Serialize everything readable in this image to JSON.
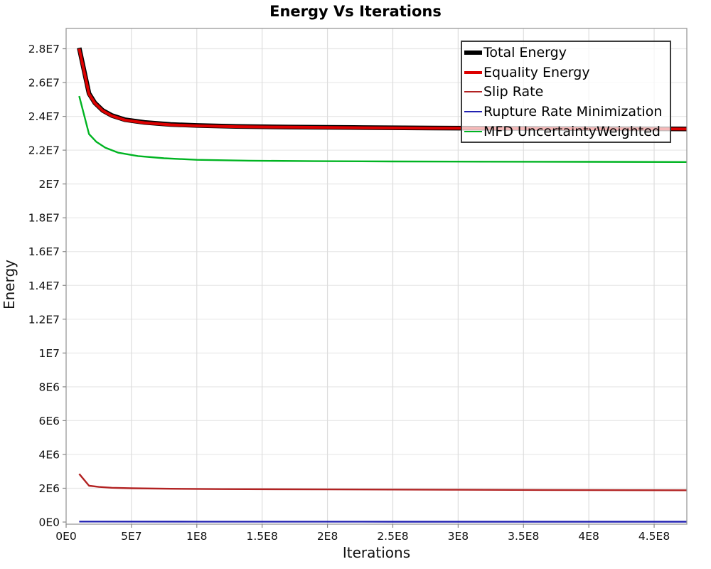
{
  "chart_data": {
    "type": "line",
    "title": "Energy Vs Iterations",
    "xlabel": "Iterations",
    "ylabel": "Energy",
    "xlim": [
      0,
      475000000
    ],
    "ylim": [
      0,
      29200000
    ],
    "grid": true,
    "legend_position": "top-right",
    "x_ticks": [
      {
        "value": 0,
        "label": "0E0"
      },
      {
        "value": 50000000,
        "label": "5E7"
      },
      {
        "value": 100000000,
        "label": "1E8"
      },
      {
        "value": 150000000,
        "label": "1.5E8"
      },
      {
        "value": 200000000,
        "label": "2E8"
      },
      {
        "value": 250000000,
        "label": "2.5E8"
      },
      {
        "value": 300000000,
        "label": "3E8"
      },
      {
        "value": 350000000,
        "label": "3.5E8"
      },
      {
        "value": 400000000,
        "label": "4E8"
      },
      {
        "value": 450000000,
        "label": "4.5E8"
      }
    ],
    "y_ticks": [
      {
        "value": 0,
        "label": "0E0"
      },
      {
        "value": 2000000,
        "label": "2E6"
      },
      {
        "value": 4000000,
        "label": "4E6"
      },
      {
        "value": 6000000,
        "label": "6E6"
      },
      {
        "value": 8000000,
        "label": "8E6"
      },
      {
        "value": 10000000,
        "label": "1E7"
      },
      {
        "value": 12000000,
        "label": "1.2E7"
      },
      {
        "value": 14000000,
        "label": "1.4E7"
      },
      {
        "value": 16000000,
        "label": "1.6E7"
      },
      {
        "value": 18000000,
        "label": "1.8E7"
      },
      {
        "value": 20000000,
        "label": "2E7"
      },
      {
        "value": 22000000,
        "label": "2.2E7"
      },
      {
        "value": 24000000,
        "label": "2.4E7"
      },
      {
        "value": 26000000,
        "label": "2.6E7"
      },
      {
        "value": 28000000,
        "label": "2.8E7"
      }
    ],
    "series": [
      {
        "name": "Total Energy",
        "color": "#000000",
        "line_width": 6.5,
        "x": [
          10000000,
          17500000,
          22000000,
          28000000,
          35000000,
          45000000,
          60000000,
          80000000,
          100000000,
          130000000,
          170000000,
          220000000,
          280000000,
          350000000,
          420000000,
          475000000
        ],
        "y": [
          28050000,
          25350000,
          24800000,
          24350000,
          24050000,
          23800000,
          23640000,
          23520000,
          23460000,
          23400000,
          23370000,
          23340000,
          23310000,
          23290000,
          23270000,
          23260000
        ]
      },
      {
        "name": "Equality Energy",
        "color": "#dd0000",
        "line_width": 4,
        "x": [
          10000000,
          17500000,
          22000000,
          28000000,
          35000000,
          45000000,
          60000000,
          80000000,
          100000000,
          130000000,
          170000000,
          220000000,
          280000000,
          350000000,
          420000000,
          475000000
        ],
        "y": [
          28000000,
          25320000,
          24780000,
          24330000,
          24030000,
          23780000,
          23620000,
          23500000,
          23440000,
          23390000,
          23360000,
          23330000,
          23300000,
          23280000,
          23260000,
          23250000
        ]
      },
      {
        "name": "Slip Rate",
        "color": "#b22222",
        "line_width": 2.4,
        "x": [
          10000000,
          17500000,
          25000000,
          35000000,
          50000000,
          80000000,
          120000000,
          200000000,
          300000000,
          400000000,
          475000000
        ],
        "y": [
          2850000,
          2150000,
          2080000,
          2030000,
          2000000,
          1970000,
          1950000,
          1930000,
          1910000,
          1890000,
          1880000
        ]
      },
      {
        "name": "Rupture Rate Minimization",
        "color": "#2222b2",
        "line_width": 2.4,
        "x": [
          10000000,
          100000000,
          250000000,
          475000000
        ],
        "y": [
          30000,
          25000,
          22000,
          20000
        ]
      },
      {
        "name": "MFD UncertaintyWeighted",
        "color": "#00b422",
        "line_width": 2.4,
        "x": [
          10000000,
          17500000,
          23000000,
          30000000,
          40000000,
          55000000,
          75000000,
          100000000,
          140000000,
          190000000,
          250000000,
          320000000,
          400000000,
          475000000
        ],
        "y": [
          25200000,
          22950000,
          22500000,
          22150000,
          21850000,
          21650000,
          21520000,
          21430000,
          21380000,
          21350000,
          21330000,
          21320000,
          21310000,
          21300000
        ]
      }
    ]
  }
}
